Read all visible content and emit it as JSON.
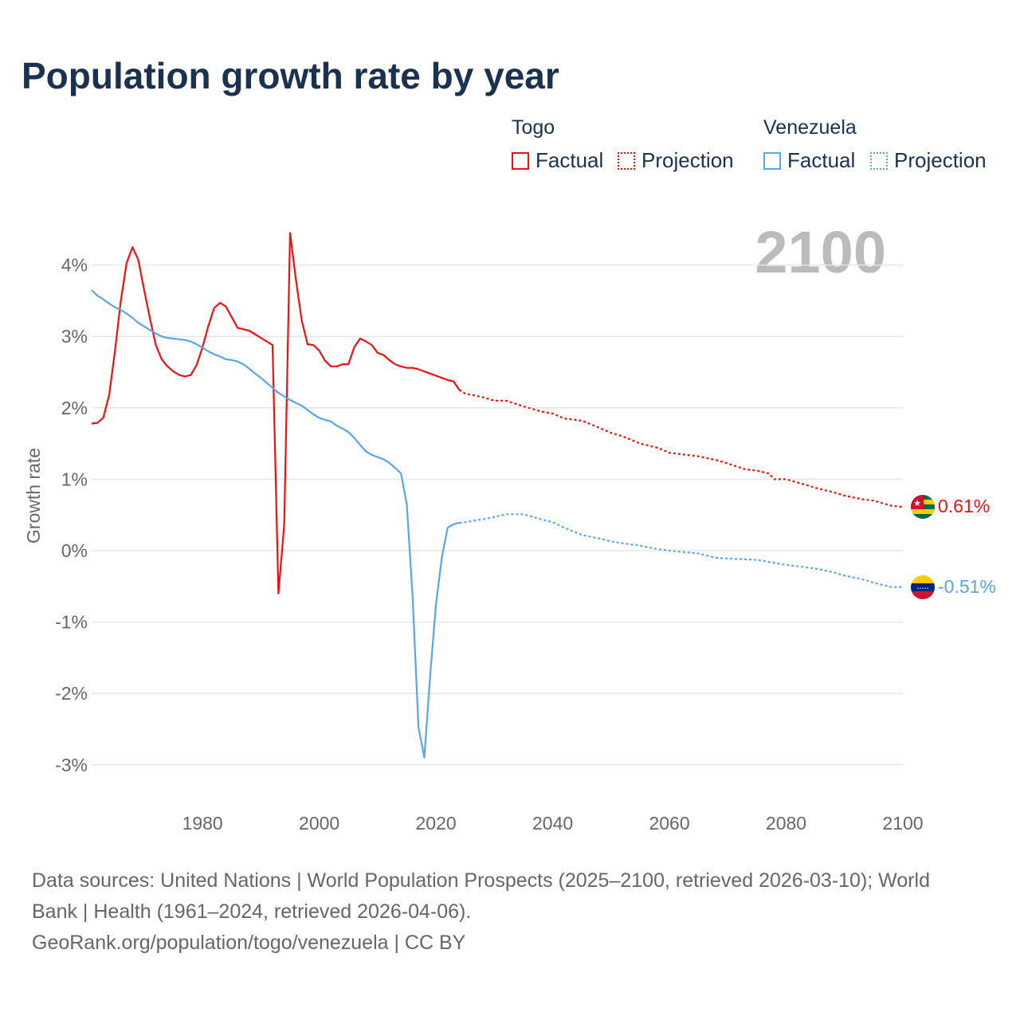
{
  "title": "Population growth rate by year",
  "legend": {
    "groups": [
      {
        "name": "Togo",
        "color": "#ee1111",
        "factual": "Factual",
        "projection": "Projection"
      },
      {
        "name": "Venezuela",
        "color": "#5aa5ea",
        "factual": "Factual",
        "projection": "Projection"
      }
    ]
  },
  "year_label": "2100",
  "end_labels": {
    "togo": "0.61%",
    "venezuela": "-0.51%"
  },
  "footer": {
    "sources": "Data sources: United Nations | World Population Prospects (2025–2100, retrieved 2026-03-10); World Bank | Health (1961–2024, retrieved 2026-04-06).",
    "credit": "GeoRank.org/population/togo/venezuela | CC BY"
  },
  "chart_data": {
    "type": "line",
    "title": "Population growth rate by year",
    "xlabel": "",
    "ylabel": "Growth rate",
    "xlim": [
      1961,
      2100
    ],
    "ylim": [
      -3.5,
      4.5
    ],
    "xticks": [
      1980,
      2000,
      2020,
      2040,
      2060,
      2080,
      2100
    ],
    "xtick_labels": [
      "1980",
      "2000",
      "2020",
      "2040",
      "2060",
      "2080",
      "2100"
    ],
    "yticks": [
      4,
      3,
      2,
      1,
      0,
      -1,
      -2,
      -3
    ],
    "ytick_labels": [
      "4%",
      "3%",
      "2%",
      "1%",
      "0%",
      "-1%",
      "-2%",
      "-3%"
    ],
    "grid": true,
    "legend_position": "top-right",
    "series": [
      {
        "name": "Togo Factual",
        "color": "#ee1111",
        "dash": false,
        "start_year": 1961,
        "values": [
          1.78,
          1.79,
          1.86,
          2.18,
          2.8,
          3.5,
          4.03,
          4.25,
          4.07,
          3.65,
          3.25,
          2.88,
          2.68,
          2.58,
          2.51,
          2.46,
          2.44,
          2.46,
          2.6,
          2.85,
          3.15,
          3.4,
          3.47,
          3.42,
          3.27,
          3.12,
          3.1,
          3.08,
          3.03,
          2.98,
          2.93,
          2.88,
          -0.6,
          0.37,
          4.45,
          3.8,
          3.22,
          2.89,
          2.88,
          2.8,
          2.66,
          2.58,
          2.58,
          2.61,
          2.61,
          2.85,
          2.97,
          2.93,
          2.88,
          2.77,
          2.74,
          2.67,
          2.61,
          2.58,
          2.56,
          2.56,
          2.54,
          2.51,
          2.48,
          2.45,
          2.42,
          2.39,
          2.37,
          2.25
        ]
      },
      {
        "name": "Togo Projection",
        "color": "#ee1111",
        "dash": true,
        "x": [
          2024,
          2025,
          2028,
          2030,
          2032,
          2035,
          2038,
          2040,
          2042,
          2045,
          2048,
          2050,
          2052,
          2055,
          2058,
          2060,
          2063,
          2065,
          2068,
          2070,
          2073,
          2075,
          2077,
          2078,
          2080,
          2083,
          2085,
          2088,
          2090,
          2093,
          2095,
          2098,
          2100
        ],
        "values": [
          2.25,
          2.2,
          2.15,
          2.1,
          2.1,
          2.02,
          1.95,
          1.92,
          1.85,
          1.82,
          1.72,
          1.65,
          1.6,
          1.5,
          1.44,
          1.37,
          1.34,
          1.32,
          1.27,
          1.22,
          1.14,
          1.12,
          1.08,
          1.0,
          1.0,
          0.93,
          0.88,
          0.82,
          0.77,
          0.72,
          0.7,
          0.63,
          0.61
        ]
      },
      {
        "name": "Venezuela Factual",
        "color": "#5aa5ea",
        "dash": false,
        "start_year": 1961,
        "values": [
          3.65,
          3.57,
          3.52,
          3.46,
          3.41,
          3.37,
          3.32,
          3.26,
          3.19,
          3.14,
          3.09,
          3.04,
          3.0,
          2.98,
          2.97,
          2.96,
          2.95,
          2.93,
          2.89,
          2.84,
          2.79,
          2.75,
          2.72,
          2.68,
          2.67,
          2.65,
          2.61,
          2.55,
          2.48,
          2.42,
          2.35,
          2.28,
          2.21,
          2.16,
          2.11,
          2.07,
          2.03,
          1.97,
          1.91,
          1.86,
          1.83,
          1.81,
          1.75,
          1.71,
          1.66,
          1.58,
          1.48,
          1.39,
          1.34,
          1.31,
          1.28,
          1.23,
          1.16,
          1.08,
          0.65,
          -0.65,
          -2.47,
          -2.9,
          -1.75,
          -0.75,
          -0.1,
          0.32,
          0.37,
          0.39
        ]
      },
      {
        "name": "Venezuela Projection",
        "color": "#5aa5ea",
        "dash": true,
        "x": [
          2024,
          2025,
          2028,
          2030,
          2032,
          2035,
          2038,
          2040,
          2042,
          2045,
          2048,
          2050,
          2053,
          2055,
          2058,
          2060,
          2065,
          2068,
          2070,
          2075,
          2080,
          2085,
          2088,
          2090,
          2093,
          2095,
          2098,
          2100
        ],
        "values": [
          0.39,
          0.4,
          0.44,
          0.47,
          0.51,
          0.51,
          0.44,
          0.4,
          0.32,
          0.22,
          0.17,
          0.13,
          0.09,
          0.07,
          0.02,
          0.0,
          -0.04,
          -0.1,
          -0.11,
          -0.13,
          -0.2,
          -0.25,
          -0.3,
          -0.35,
          -0.4,
          -0.45,
          -0.51,
          -0.51
        ]
      }
    ]
  }
}
